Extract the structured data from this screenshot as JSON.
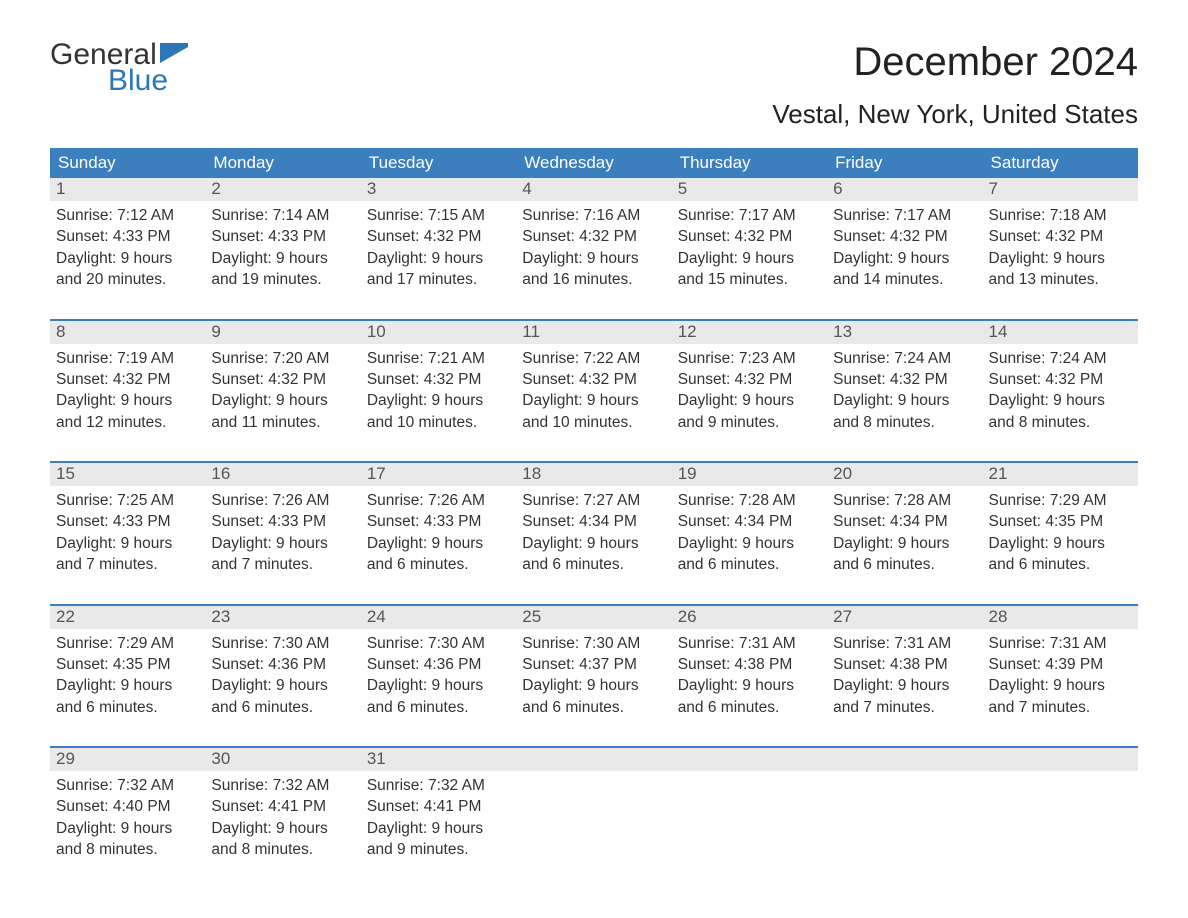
{
  "brand": {
    "part1": "General",
    "part2": "Blue",
    "color_dark": "#333333",
    "color_blue": "#2b77b8"
  },
  "title": "December 2024",
  "location": "Vestal, New York, United States",
  "colors": {
    "header_bg": "#3b7fbf",
    "header_text": "#ffffff",
    "daynum_bg": "#e9e9e9",
    "week_border": "#3b7fbf",
    "body_bg": "#ffffff",
    "text": "#333333"
  },
  "day_names": [
    "Sunday",
    "Monday",
    "Tuesday",
    "Wednesday",
    "Thursday",
    "Friday",
    "Saturday"
  ],
  "weeks": [
    [
      {
        "n": "1",
        "sunrise": "Sunrise: 7:12 AM",
        "sunset": "Sunset: 4:33 PM",
        "daylight": "Daylight: 9 hours and 20 minutes."
      },
      {
        "n": "2",
        "sunrise": "Sunrise: 7:14 AM",
        "sunset": "Sunset: 4:33 PM",
        "daylight": "Daylight: 9 hours and 19 minutes."
      },
      {
        "n": "3",
        "sunrise": "Sunrise: 7:15 AM",
        "sunset": "Sunset: 4:32 PM",
        "daylight": "Daylight: 9 hours and 17 minutes."
      },
      {
        "n": "4",
        "sunrise": "Sunrise: 7:16 AM",
        "sunset": "Sunset: 4:32 PM",
        "daylight": "Daylight: 9 hours and 16 minutes."
      },
      {
        "n": "5",
        "sunrise": "Sunrise: 7:17 AM",
        "sunset": "Sunset: 4:32 PM",
        "daylight": "Daylight: 9 hours and 15 minutes."
      },
      {
        "n": "6",
        "sunrise": "Sunrise: 7:17 AM",
        "sunset": "Sunset: 4:32 PM",
        "daylight": "Daylight: 9 hours and 14 minutes."
      },
      {
        "n": "7",
        "sunrise": "Sunrise: 7:18 AM",
        "sunset": "Sunset: 4:32 PM",
        "daylight": "Daylight: 9 hours and 13 minutes."
      }
    ],
    [
      {
        "n": "8",
        "sunrise": "Sunrise: 7:19 AM",
        "sunset": "Sunset: 4:32 PM",
        "daylight": "Daylight: 9 hours and 12 minutes."
      },
      {
        "n": "9",
        "sunrise": "Sunrise: 7:20 AM",
        "sunset": "Sunset: 4:32 PM",
        "daylight": "Daylight: 9 hours and 11 minutes."
      },
      {
        "n": "10",
        "sunrise": "Sunrise: 7:21 AM",
        "sunset": "Sunset: 4:32 PM",
        "daylight": "Daylight: 9 hours and 10 minutes."
      },
      {
        "n": "11",
        "sunrise": "Sunrise: 7:22 AM",
        "sunset": "Sunset: 4:32 PM",
        "daylight": "Daylight: 9 hours and 10 minutes."
      },
      {
        "n": "12",
        "sunrise": "Sunrise: 7:23 AM",
        "sunset": "Sunset: 4:32 PM",
        "daylight": "Daylight: 9 hours and 9 minutes."
      },
      {
        "n": "13",
        "sunrise": "Sunrise: 7:24 AM",
        "sunset": "Sunset: 4:32 PM",
        "daylight": "Daylight: 9 hours and 8 minutes."
      },
      {
        "n": "14",
        "sunrise": "Sunrise: 7:24 AM",
        "sunset": "Sunset: 4:32 PM",
        "daylight": "Daylight: 9 hours and 8 minutes."
      }
    ],
    [
      {
        "n": "15",
        "sunrise": "Sunrise: 7:25 AM",
        "sunset": "Sunset: 4:33 PM",
        "daylight": "Daylight: 9 hours and 7 minutes."
      },
      {
        "n": "16",
        "sunrise": "Sunrise: 7:26 AM",
        "sunset": "Sunset: 4:33 PM",
        "daylight": "Daylight: 9 hours and 7 minutes."
      },
      {
        "n": "17",
        "sunrise": "Sunrise: 7:26 AM",
        "sunset": "Sunset: 4:33 PM",
        "daylight": "Daylight: 9 hours and 6 minutes."
      },
      {
        "n": "18",
        "sunrise": "Sunrise: 7:27 AM",
        "sunset": "Sunset: 4:34 PM",
        "daylight": "Daylight: 9 hours and 6 minutes."
      },
      {
        "n": "19",
        "sunrise": "Sunrise: 7:28 AM",
        "sunset": "Sunset: 4:34 PM",
        "daylight": "Daylight: 9 hours and 6 minutes."
      },
      {
        "n": "20",
        "sunrise": "Sunrise: 7:28 AM",
        "sunset": "Sunset: 4:34 PM",
        "daylight": "Daylight: 9 hours and 6 minutes."
      },
      {
        "n": "21",
        "sunrise": "Sunrise: 7:29 AM",
        "sunset": "Sunset: 4:35 PM",
        "daylight": "Daylight: 9 hours and 6 minutes."
      }
    ],
    [
      {
        "n": "22",
        "sunrise": "Sunrise: 7:29 AM",
        "sunset": "Sunset: 4:35 PM",
        "daylight": "Daylight: 9 hours and 6 minutes."
      },
      {
        "n": "23",
        "sunrise": "Sunrise: 7:30 AM",
        "sunset": "Sunset: 4:36 PM",
        "daylight": "Daylight: 9 hours and 6 minutes."
      },
      {
        "n": "24",
        "sunrise": "Sunrise: 7:30 AM",
        "sunset": "Sunset: 4:36 PM",
        "daylight": "Daylight: 9 hours and 6 minutes."
      },
      {
        "n": "25",
        "sunrise": "Sunrise: 7:30 AM",
        "sunset": "Sunset: 4:37 PM",
        "daylight": "Daylight: 9 hours and 6 minutes."
      },
      {
        "n": "26",
        "sunrise": "Sunrise: 7:31 AM",
        "sunset": "Sunset: 4:38 PM",
        "daylight": "Daylight: 9 hours and 6 minutes."
      },
      {
        "n": "27",
        "sunrise": "Sunrise: 7:31 AM",
        "sunset": "Sunset: 4:38 PM",
        "daylight": "Daylight: 9 hours and 7 minutes."
      },
      {
        "n": "28",
        "sunrise": "Sunrise: 7:31 AM",
        "sunset": "Sunset: 4:39 PM",
        "daylight": "Daylight: 9 hours and 7 minutes."
      }
    ],
    [
      {
        "n": "29",
        "sunrise": "Sunrise: 7:32 AM",
        "sunset": "Sunset: 4:40 PM",
        "daylight": "Daylight: 9 hours and 8 minutes."
      },
      {
        "n": "30",
        "sunrise": "Sunrise: 7:32 AM",
        "sunset": "Sunset: 4:41 PM",
        "daylight": "Daylight: 9 hours and 8 minutes."
      },
      {
        "n": "31",
        "sunrise": "Sunrise: 7:32 AM",
        "sunset": "Sunset: 4:41 PM",
        "daylight": "Daylight: 9 hours and 9 minutes."
      },
      null,
      null,
      null,
      null
    ]
  ]
}
